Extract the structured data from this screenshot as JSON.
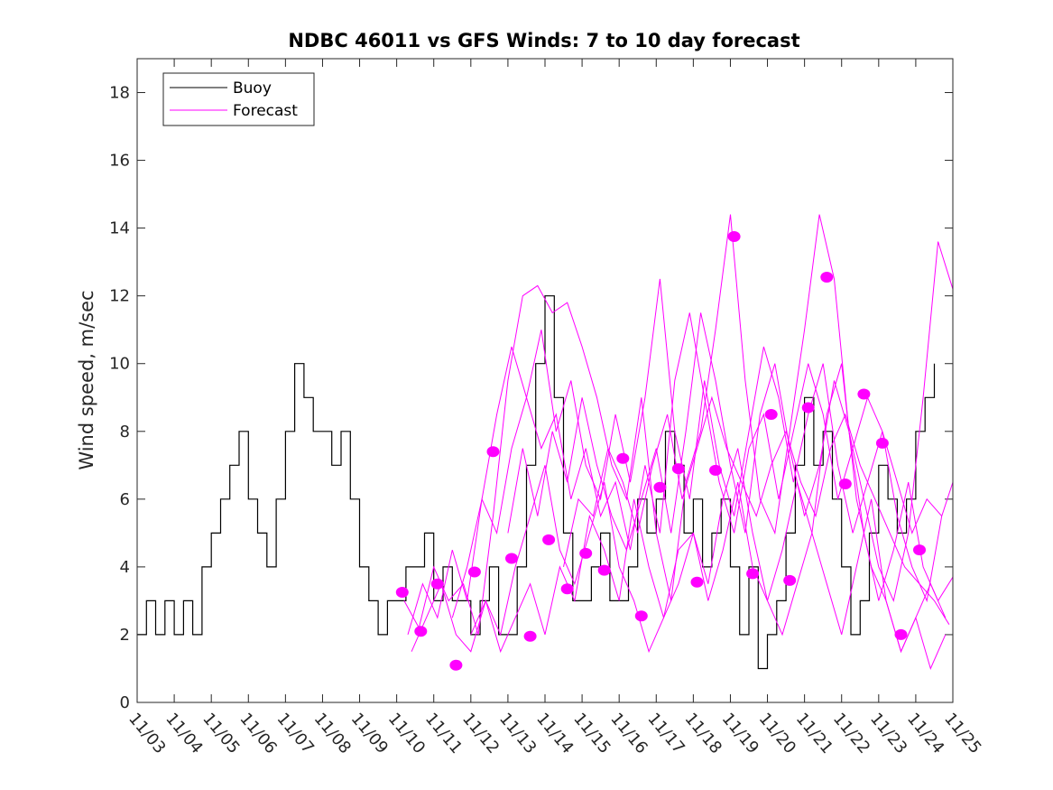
{
  "chart_data": {
    "type": "line",
    "title": "NDBC 46011 vs GFS Winds: 7 to 10 day forecast",
    "xlabel": "",
    "ylabel": "Wind speed, m/sec",
    "ylim": [
      0,
      19
    ],
    "xlim": [
      0,
      22
    ],
    "yticks": [
      0,
      2,
      4,
      6,
      8,
      10,
      12,
      14,
      16,
      18
    ],
    "xtick_labels": [
      "11/03",
      "11/04",
      "11/05",
      "11/06",
      "11/07",
      "11/08",
      "11/09",
      "11/10",
      "11/11",
      "11/12",
      "11/13",
      "11/14",
      "11/15",
      "11/16",
      "11/17",
      "11/18",
      "11/19",
      "11/20",
      "11/21",
      "11/22",
      "11/23",
      "11/24",
      "11/25"
    ],
    "legend": {
      "position": "top-left",
      "entries": [
        {
          "label": "Buoy",
          "color": "#000000"
        },
        {
          "label": "Forecast",
          "color": "#ff00ff"
        }
      ]
    },
    "colors": {
      "buoy": "#000000",
      "forecast": "#ff00ff",
      "axes": "#262626"
    },
    "series": [
      {
        "name": "Buoy",
        "x": [
          0.0,
          0.25,
          0.5,
          0.75,
          1.0,
          1.25,
          1.5,
          1.75,
          2.0,
          2.25,
          2.5,
          2.75,
          3.0,
          3.25,
          3.5,
          3.75,
          4.0,
          4.25,
          4.5,
          4.75,
          5.0,
          5.25,
          5.5,
          5.75,
          6.0,
          6.25,
          6.5,
          6.75,
          7.0,
          7.25,
          7.5,
          7.75,
          8.0,
          8.25,
          8.5,
          8.75,
          9.0,
          9.25,
          9.5,
          9.75,
          10.0,
          10.25,
          10.5,
          10.75,
          11.0,
          11.25,
          11.5,
          11.75,
          12.0,
          12.25,
          12.5,
          12.75,
          13.0,
          13.25,
          13.5,
          13.75,
          14.0,
          14.25,
          14.5,
          14.75,
          15.0,
          15.25,
          15.5,
          15.75,
          16.0,
          16.25,
          16.5,
          16.75,
          17.0,
          17.25,
          17.5,
          17.75,
          18.0,
          18.25,
          18.5,
          18.75,
          19.0,
          19.25,
          19.5,
          19.75,
          20.0,
          20.25,
          20.5,
          20.75,
          21.0,
          21.25,
          21.5
        ],
        "values": [
          2,
          3,
          2,
          3,
          2,
          3,
          2,
          4,
          5,
          6,
          7,
          8,
          6,
          5,
          4,
          6,
          8,
          10,
          9,
          8,
          8,
          7,
          8,
          6,
          4,
          3,
          2,
          3,
          3,
          4,
          4,
          5,
          3,
          4,
          3,
          3,
          2,
          3,
          4,
          2,
          2,
          4,
          7,
          10,
          12,
          9,
          5,
          3,
          3,
          4,
          5,
          3,
          3,
          4,
          6,
          5,
          6,
          8,
          7,
          5,
          6,
          4,
          5,
          6,
          4,
          2,
          4,
          1,
          2,
          3,
          5,
          7,
          9,
          7,
          8,
          6,
          4,
          2,
          3,
          5,
          7,
          6,
          5,
          6,
          8,
          9,
          10
        ]
      },
      {
        "name": "Forecast",
        "dots": [
          {
            "x": 7.15,
            "y": 3.25
          },
          {
            "x": 7.65,
            "y": 2.1
          },
          {
            "x": 8.1,
            "y": 3.5
          },
          {
            "x": 8.6,
            "y": 1.1
          },
          {
            "x": 9.1,
            "y": 3.85
          },
          {
            "x": 9.6,
            "y": 7.4
          },
          {
            "x": 10.1,
            "y": 4.25
          },
          {
            "x": 10.6,
            "y": 1.95
          },
          {
            "x": 11.1,
            "y": 4.8
          },
          {
            "x": 11.6,
            "y": 3.35
          },
          {
            "x": 12.1,
            "y": 4.4
          },
          {
            "x": 12.6,
            "y": 3.9
          },
          {
            "x": 13.1,
            "y": 7.2
          },
          {
            "x": 13.6,
            "y": 2.55
          },
          {
            "x": 14.1,
            "y": 6.35
          },
          {
            "x": 14.6,
            "y": 6.9
          },
          {
            "x": 15.1,
            "y": 3.55
          },
          {
            "x": 15.6,
            "y": 6.85
          },
          {
            "x": 16.1,
            "y": 13.75
          },
          {
            "x": 16.6,
            "y": 3.8
          },
          {
            "x": 17.1,
            "y": 8.5
          },
          {
            "x": 17.6,
            "y": 3.6
          },
          {
            "x": 18.1,
            "y": 8.7
          },
          {
            "x": 18.6,
            "y": 12.55
          },
          {
            "x": 19.1,
            "y": 6.45
          },
          {
            "x": 19.6,
            "y": 9.1
          },
          {
            "x": 20.1,
            "y": 7.65
          },
          {
            "x": 20.6,
            "y": 2.0
          },
          {
            "x": 21.1,
            "y": 4.5
          }
        ],
        "lines": [
          {
            "x": [
              7.2,
              7.6,
              8.0,
              8.4,
              8.8,
              9.2,
              9.6,
              10.0,
              10.4,
              10.8,
              11.2,
              11.6,
              12.0,
              12.4,
              12.8,
              13.2,
              13.6,
              14.0,
              14.4,
              14.8,
              15.2,
              15.6,
              16.0,
              16.4,
              16.8,
              17.2,
              17.6,
              18.0,
              18.4,
              18.8,
              19.2,
              19.6,
              20.0,
              20.4,
              20.8,
              21.2,
              21.6,
              22.0
            ],
            "values": [
              3.0,
              2.2,
              4.0,
              3.0,
              3.5,
              2.0,
              5.5,
              9.5,
              12.0,
              12.3,
              11.5,
              11.8,
              10.5,
              9.0,
              7.0,
              6.0,
              9.0,
              5.0,
              3.0,
              6.5,
              8.0,
              11.0,
              14.4,
              9.5,
              6.0,
              5.0,
              8.0,
              11.0,
              14.4,
              12.5,
              8.0,
              6.0,
              4.0,
              3.0,
              5.0,
              9.0,
              13.6,
              12.2
            ]
          },
          {
            "x": [
              7.3,
              7.7,
              8.1,
              8.5,
              8.9,
              9.3,
              9.7,
              10.1,
              10.5,
              10.9,
              11.3,
              11.7,
              12.1,
              12.5,
              12.9,
              13.3,
              13.7,
              14.1,
              14.5,
              14.9,
              15.3,
              15.7,
              16.1,
              16.5,
              16.9,
              17.3,
              17.7,
              18.1,
              18.5,
              18.9,
              19.3,
              19.7,
              20.1,
              20.5,
              20.9,
              21.3,
              21.7
            ],
            "values": [
              2.0,
              3.5,
              2.5,
              4.5,
              3.0,
              6.0,
              8.5,
              10.5,
              9.0,
              7.5,
              8.5,
              6.0,
              7.5,
              5.5,
              6.5,
              4.5,
              7.0,
              5.0,
              9.5,
              11.5,
              9.0,
              6.5,
              5.0,
              7.5,
              8.5,
              6.0,
              8.0,
              10.0,
              8.5,
              6.0,
              7.5,
              9.0,
              8.0,
              6.5,
              5.0,
              6.0,
              5.5
            ]
          },
          {
            "x": [
              7.4,
              7.8,
              8.2,
              8.6,
              9.0,
              9.4,
              9.8,
              10.2,
              10.6,
              11.0,
              11.4,
              11.8,
              12.2,
              12.6,
              13.0,
              13.4,
              13.8,
              14.2,
              14.6,
              15.0,
              15.4,
              15.8,
              16.2,
              16.6,
              17.0,
              17.4,
              17.8,
              18.2,
              18.6,
              19.0,
              19.4,
              19.8,
              20.2,
              20.6,
              21.0,
              21.4,
              21.8
            ],
            "values": [
              1.5,
              2.5,
              3.5,
              2.0,
              1.5,
              3.0,
              2.0,
              4.0,
              5.5,
              7.0,
              4.5,
              3.5,
              5.0,
              6.5,
              4.0,
              3.0,
              1.5,
              2.5,
              4.5,
              5.0,
              3.5,
              6.0,
              7.5,
              5.0,
              3.0,
              4.5,
              6.5,
              5.0,
              3.5,
              2.0,
              4.0,
              6.0,
              3.0,
              1.5,
              2.5,
              1.0,
              2.0
            ]
          },
          {
            "x": [
              8.5,
              8.9,
              9.3,
              9.7,
              10.1,
              10.5,
              10.9,
              11.3,
              11.7,
              12.1,
              12.5,
              12.9,
              13.3,
              13.7,
              14.1,
              14.5,
              14.9,
              15.3,
              15.7,
              16.1,
              16.5,
              16.9,
              17.3,
              17.7,
              18.1,
              18.5,
              18.9,
              19.3,
              19.7,
              20.1,
              20.5,
              20.9,
              21.3,
              21.7,
              22.0
            ],
            "values": [
              2.5,
              4.0,
              6.0,
              5.0,
              7.5,
              9.0,
              11.0,
              8.0,
              9.5,
              7.0,
              6.0,
              8.5,
              6.5,
              9.0,
              12.5,
              8.0,
              6.0,
              9.5,
              7.0,
              5.5,
              8.0,
              10.5,
              9.0,
              6.5,
              8.5,
              10.0,
              7.0,
              5.0,
              6.5,
              8.0,
              5.5,
              4.0,
              3.0,
              5.5,
              6.5
            ]
          },
          {
            "x": [
              9.0,
              9.4,
              9.8,
              10.2,
              10.6,
              11.0,
              11.4,
              11.8,
              12.2,
              12.6,
              13.0,
              13.4,
              13.8,
              14.2,
              14.6,
              15.0,
              15.4,
              15.8,
              16.2,
              16.6,
              17.0,
              17.4,
              17.8,
              18.2,
              18.6,
              19.0,
              19.4,
              19.8,
              20.2,
              20.6,
              21.0,
              21.4,
              21.8
            ],
            "values": [
              2.0,
              3.0,
              1.5,
              2.5,
              3.5,
              2.0,
              4.0,
              3.0,
              5.5,
              4.5,
              3.0,
              6.0,
              4.0,
              2.5,
              3.5,
              5.0,
              3.0,
              4.5,
              6.5,
              4.0,
              3.0,
              2.0,
              3.5,
              5.0,
              8.5,
              10.0,
              6.0,
              4.0,
              3.0,
              1.5,
              2.5,
              3.5,
              2.5
            ]
          },
          {
            "x": [
              10.0,
              10.4,
              10.8,
              11.2,
              11.6,
              12.0,
              12.4,
              12.8,
              13.2,
              13.6,
              14.0,
              14.4,
              14.8,
              15.2,
              15.6,
              16.0,
              16.4,
              16.8,
              17.2,
              17.6,
              18.0,
              18.4,
              18.8,
              19.2,
              19.6,
              20.0,
              20.4,
              20.8,
              21.2,
              21.6,
              22.0
            ],
            "values": [
              5.0,
              7.5,
              5.5,
              8.0,
              6.5,
              9.0,
              7.0,
              5.5,
              4.5,
              6.0,
              7.5,
              5.0,
              8.0,
              11.5,
              9.5,
              7.0,
              5.0,
              8.5,
              10.0,
              7.5,
              5.5,
              7.0,
              9.5,
              8.0,
              5.0,
              3.0,
              4.5,
              6.5,
              4.0,
              3.0,
              3.7
            ]
          },
          {
            "x": [
              11.5,
              11.9,
              12.3,
              12.7,
              13.1,
              13.5,
              13.9,
              14.3,
              14.7,
              15.1,
              15.5,
              15.9,
              16.3,
              16.7,
              17.1,
              17.5,
              17.9,
              18.3,
              18.7,
              19.1,
              19.5,
              19.9,
              20.3,
              20.7,
              21.1,
              21.5,
              21.9
            ],
            "values": [
              4.0,
              6.0,
              5.5,
              7.5,
              6.5,
              5.0,
              7.0,
              8.5,
              6.0,
              7.5,
              9.0,
              7.5,
              6.5,
              5.5,
              7.0,
              8.0,
              6.5,
              5.5,
              7.5,
              8.5,
              7.0,
              6.0,
              5.0,
              4.0,
              3.5,
              3.0,
              2.3
            ]
          }
        ]
      }
    ]
  }
}
